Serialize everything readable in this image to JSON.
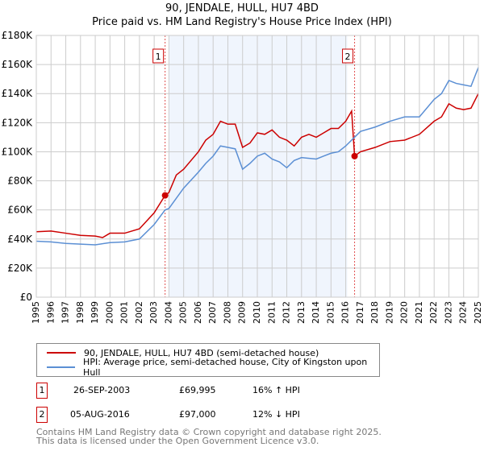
{
  "chart_data": {
    "type": "line",
    "title": "90, JENDALE, HULL, HU7 4BD",
    "subtitle": "Price paid vs. HM Land Registry's House Price Index (HPI)",
    "xlim": [
      1995,
      2025
    ],
    "ylim": [
      0,
      180000
    ],
    "x_ticks": [
      "1995",
      "1996",
      "1997",
      "1998",
      "1999",
      "2000",
      "2001",
      "2002",
      "2003",
      "2004",
      "2005",
      "2006",
      "2007",
      "2008",
      "2009",
      "2010",
      "2011",
      "2012",
      "2013",
      "2014",
      "2015",
      "2016",
      "2017",
      "2018",
      "2019",
      "2020",
      "2021",
      "2022",
      "2023",
      "2024",
      "2025"
    ],
    "y_ticks": [
      {
        "v": 0,
        "label": "£0"
      },
      {
        "v": 20000,
        "label": "£20K"
      },
      {
        "v": 40000,
        "label": "£40K"
      },
      {
        "v": 60000,
        "label": "£60K"
      },
      {
        "v": 80000,
        "label": "£80K"
      },
      {
        "v": 100000,
        "label": "£100K"
      },
      {
        "v": 120000,
        "label": "£120K"
      },
      {
        "v": 140000,
        "label": "£140K"
      },
      {
        "v": 160000,
        "label": "£160K"
      },
      {
        "v": 180000,
        "label": "£180K"
      }
    ],
    "grid": true,
    "shaded_range": [
      2004.0,
      2016.1
    ],
    "series": [
      {
        "name": "90, JENDALE, HULL, HU7 4BD (semi-detached house)",
        "color": "#cc0000",
        "x": [
          1995,
          1996,
          1997,
          1998,
          1999,
          1999.5,
          2000,
          2001,
          2002,
          2003,
          2003.74,
          2004,
          2004.5,
          2005,
          2006,
          2006.5,
          2007,
          2007.5,
          2008,
          2008.5,
          2009,
          2009.5,
          2010,
          2010.5,
          2011,
          2011.5,
          2012,
          2012.5,
          2013,
          2013.5,
          2014,
          2014.5,
          2015,
          2015.5,
          2016,
          2016.4,
          2016.6,
          2017,
          2018,
          2019,
          2020,
          2021,
          2022,
          2022.5,
          2023,
          2023.5,
          2024,
          2024.5,
          2025
        ],
        "y": [
          45000,
          45500,
          44000,
          42500,
          42000,
          41000,
          44000,
          44000,
          47000,
          58000,
          69995,
          72000,
          84000,
          88000,
          100000,
          108000,
          112000,
          121000,
          119000,
          119000,
          103000,
          106000,
          113000,
          112000,
          115000,
          110000,
          108000,
          104000,
          110000,
          112000,
          110000,
          113000,
          116000,
          116000,
          121000,
          128000,
          97000,
          100000,
          103000,
          107000,
          108000,
          112000,
          121000,
          124000,
          133000,
          130000,
          129000,
          130000,
          140000
        ]
      },
      {
        "name": "HPI: Average price, semi-detached house, City of Kingston upon Hull",
        "color": "#5b8fd4",
        "x": [
          1995,
          1996,
          1997,
          1998,
          1999,
          2000,
          2001,
          2002,
          2003,
          2003.74,
          2004,
          2005,
          2006,
          2006.5,
          2007,
          2007.5,
          2008,
          2008.5,
          2009,
          2009.5,
          2010,
          2010.5,
          2011,
          2011.5,
          2012,
          2012.5,
          2013,
          2014,
          2014.5,
          2015,
          2015.5,
          2016,
          2016.5,
          2017,
          2018,
          2019,
          2020,
          2021,
          2022,
          2022.5,
          2023,
          2023.5,
          2024,
          2024.5,
          2025
        ],
        "y": [
          38500,
          38000,
          37000,
          36500,
          36000,
          37500,
          38000,
          40000,
          50000,
          60000,
          61000,
          75000,
          86000,
          92000,
          97000,
          104000,
          103000,
          102000,
          88000,
          92000,
          97000,
          99000,
          95000,
          93000,
          89000,
          94000,
          96000,
          95000,
          97000,
          99000,
          100000,
          104000,
          109000,
          114000,
          117000,
          121000,
          124000,
          124000,
          136000,
          140000,
          149000,
          147000,
          146000,
          145000,
          158000
        ]
      }
    ],
    "annotations": [
      {
        "label": "1",
        "x": 2003.74,
        "y": 69995
      },
      {
        "label": "2",
        "x": 2016.6,
        "y": 97000
      }
    ]
  },
  "legend": {
    "items": [
      "90, JENDALE, HULL, HU7 4BD (semi-detached house)",
      "HPI: Average price, semi-detached house, City of Kingston upon Hull"
    ]
  },
  "sales": [
    {
      "num": "1",
      "date": "26-SEP-2003",
      "price": "£69,995",
      "hpi": "16% ↑ HPI"
    },
    {
      "num": "2",
      "date": "05-AUG-2016",
      "price": "£97,000",
      "hpi": "12% ↓ HPI"
    }
  ],
  "footer": {
    "line1": "Contains HM Land Registry data © Crown copyright and database right 2025.",
    "line2": "This data is licensed under the Open Government Licence v3.0."
  }
}
